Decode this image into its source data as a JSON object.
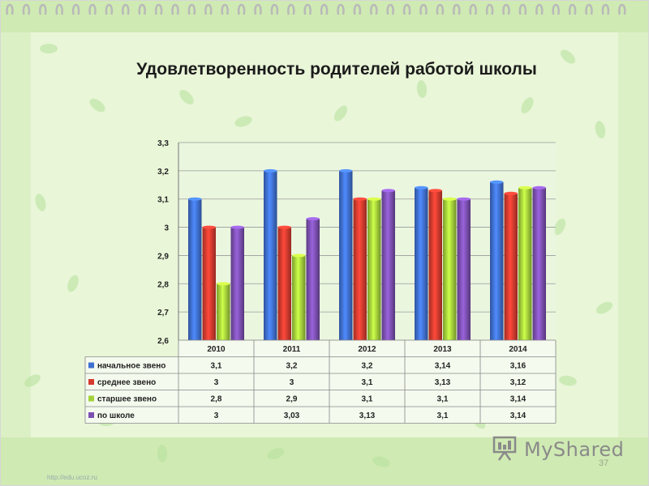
{
  "slide": {
    "title": "Удовлетворенность родителей работой школы",
    "slide_number": "37",
    "watermark": "MyShared",
    "url": "http://edu.ucoz.ru"
  },
  "colors": {
    "background": "#e9f6d8",
    "stripe": "#cfeab3",
    "leaf": "#b5e09a",
    "ring": "#b9b9b9"
  },
  "chart_data": {
    "type": "bar",
    "title": "",
    "xlabel": "",
    "ylabel": "",
    "categories": [
      "2010",
      "2011",
      "2012",
      "2013",
      "2014"
    ],
    "ylim": [
      2.6,
      3.3
    ],
    "yticks": [
      "2,6",
      "2,7",
      "2,8",
      "2,9",
      "3",
      "3,1",
      "3,2",
      "3,3"
    ],
    "grid": true,
    "legend": "table-below",
    "series": [
      {
        "name": "начальное звено",
        "color": "#3f6fd1",
        "values": [
          3.1,
          3.2,
          3.2,
          3.14,
          3.16
        ],
        "labels": [
          "3,1",
          "3,2",
          "3,2",
          "3,14",
          "3,16"
        ]
      },
      {
        "name": "среднее звено",
        "color": "#d63a2e",
        "values": [
          3,
          3,
          3.1,
          3.13,
          3.12
        ],
        "labels": [
          "3",
          "3",
          "3,1",
          "3,13",
          "3,12"
        ]
      },
      {
        "name": "старшее звено",
        "color": "#a3d13a",
        "values": [
          2.8,
          2.9,
          3.1,
          3.1,
          3.14
        ],
        "labels": [
          "2,8",
          "2,9",
          "3,1",
          "3,1",
          "3,14"
        ]
      },
      {
        "name": "по школе",
        "color": "#7b4fb0",
        "values": [
          3,
          3.03,
          3.13,
          3.1,
          3.14
        ],
        "labels": [
          "3",
          "3,03",
          "3,13",
          "3,1",
          "3,14"
        ]
      }
    ]
  }
}
